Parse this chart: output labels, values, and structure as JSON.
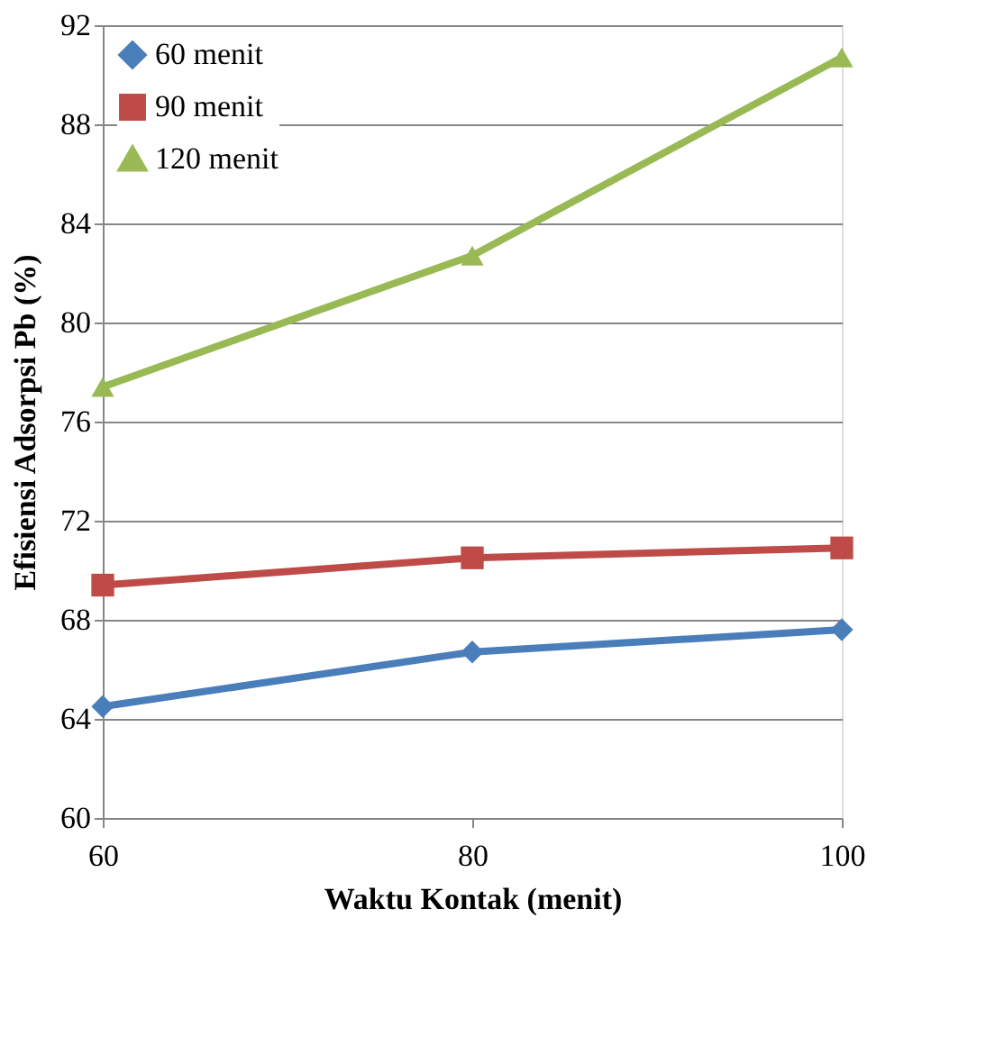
{
  "chart_data": {
    "type": "line",
    "xlabel": "Waktu Kontak (menit)",
    "ylabel": "Efisiensi Adsorpsi Pb (%)",
    "x": [
      60,
      80,
      100
    ],
    "series": [
      {
        "name": "60 menit",
        "color": "#4a7ebb",
        "marker": "diamond",
        "values": [
          64.5,
          66.7,
          67.6
        ]
      },
      {
        "name": "90 menit",
        "color": "#be4b48",
        "marker": "square",
        "values": [
          69.4,
          70.5,
          70.9
        ]
      },
      {
        "name": "120 menit",
        "color": "#98b954",
        "marker": "triangle",
        "values": [
          77.4,
          82.7,
          90.7
        ]
      }
    ],
    "xlim": [
      60,
      100
    ],
    "xticks": [
      60,
      80,
      100
    ],
    "ylim": [
      60,
      92
    ],
    "yticks": [
      60,
      64,
      68,
      72,
      76,
      80,
      84,
      88,
      92
    ],
    "grid": "y",
    "legend": "top left",
    "line_style": "solid"
  }
}
